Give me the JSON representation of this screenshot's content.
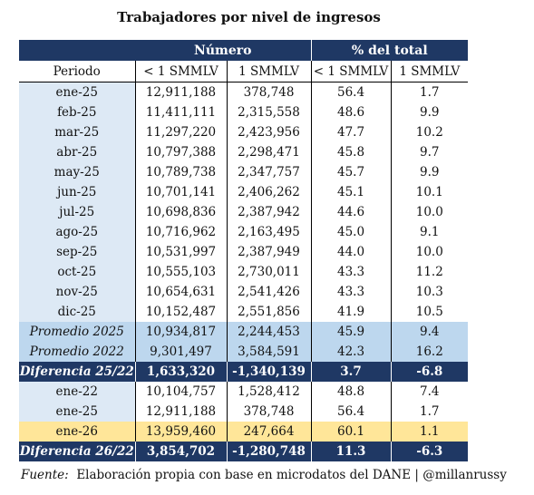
{
  "title": "Trabajadores por nivel de ingresos",
  "headers": {
    "group_numero": "Número",
    "group_pct": "% del total",
    "periodo": "Periodo",
    "lt1": "< 1 SMMLV",
    "eq1": "1 SMMLV",
    "lt1_pct": "< 1 SMMLV",
    "eq1_pct": "1 SMMLV"
  },
  "rows": [
    {
      "period": "ene-25",
      "n_lt1": "12,911,188",
      "n_eq1": "378,748",
      "p_lt1": "56.4",
      "p_eq1": "1.7"
    },
    {
      "period": "feb-25",
      "n_lt1": "11,411,111",
      "n_eq1": "2,315,558",
      "p_lt1": "48.6",
      "p_eq1": "9.9"
    },
    {
      "period": "mar-25",
      "n_lt1": "11,297,220",
      "n_eq1": "2,423,956",
      "p_lt1": "47.7",
      "p_eq1": "10.2"
    },
    {
      "period": "abr-25",
      "n_lt1": "10,797,388",
      "n_eq1": "2,298,471",
      "p_lt1": "45.8",
      "p_eq1": "9.7"
    },
    {
      "period": "may-25",
      "n_lt1": "10,789,738",
      "n_eq1": "2,347,757",
      "p_lt1": "45.7",
      "p_eq1": "9.9"
    },
    {
      "period": "jun-25",
      "n_lt1": "10,701,141",
      "n_eq1": "2,406,262",
      "p_lt1": "45.1",
      "p_eq1": "10.1"
    },
    {
      "period": "jul-25",
      "n_lt1": "10,698,836",
      "n_eq1": "2,387,942",
      "p_lt1": "44.6",
      "p_eq1": "10.0"
    },
    {
      "period": "ago-25",
      "n_lt1": "10,716,962",
      "n_eq1": "2,163,495",
      "p_lt1": "45.0",
      "p_eq1": "9.1"
    },
    {
      "period": "sep-25",
      "n_lt1": "10,531,997",
      "n_eq1": "2,387,949",
      "p_lt1": "44.0",
      "p_eq1": "10.0"
    },
    {
      "period": "oct-25",
      "n_lt1": "10,555,103",
      "n_eq1": "2,730,011",
      "p_lt1": "43.3",
      "p_eq1": "11.2"
    },
    {
      "period": "nov-25",
      "n_lt1": "10,654,631",
      "n_eq1": "2,541,426",
      "p_lt1": "43.3",
      "p_eq1": "10.3"
    },
    {
      "period": "dic-25",
      "n_lt1": "10,152,487",
      "n_eq1": "2,551,856",
      "p_lt1": "41.9",
      "p_eq1": "10.5"
    }
  ],
  "averages": [
    {
      "period": "Promedio 2025",
      "n_lt1": "10,934,817",
      "n_eq1": "2,244,453",
      "p_lt1": "45.9",
      "p_eq1": "9.4"
    },
    {
      "period": "Promedio 2022",
      "n_lt1": "9,301,497",
      "n_eq1": "3,584,591",
      "p_lt1": "42.3",
      "p_eq1": "16.2"
    }
  ],
  "diff1": {
    "period": "Diferencia 25/22",
    "n_lt1": "1,633,320",
    "n_eq1": "-1,340,139",
    "p_lt1": "3.7",
    "p_eq1": "-6.8"
  },
  "rows2": [
    {
      "period": "ene-22",
      "n_lt1": "10,104,757",
      "n_eq1": "1,528,412",
      "p_lt1": "48.8",
      "p_eq1": "7.4"
    },
    {
      "period": "ene-25",
      "n_lt1": "12,911,188",
      "n_eq1": "378,748",
      "p_lt1": "56.4",
      "p_eq1": "1.7"
    }
  ],
  "highlight": {
    "period": "ene-26",
    "n_lt1": "13,959,460",
    "n_eq1": "247,664",
    "p_lt1": "60.1",
    "p_eq1": "1.1"
  },
  "diff2": {
    "period": "Diferencia 26/22",
    "n_lt1": "3,854,702",
    "n_eq1": "-1,280,748",
    "p_lt1": "11.3",
    "p_eq1": "-6.3"
  },
  "source": {
    "label": "Fuente:",
    "text": "Elaboración propia con base en microdatos del DANE | @millanrussy"
  },
  "colors": {
    "navy": "#1f3864",
    "light_blue": "#dde9f5",
    "avg_blue": "#bdd7ee",
    "highlight_yellow": "#ffe699"
  }
}
